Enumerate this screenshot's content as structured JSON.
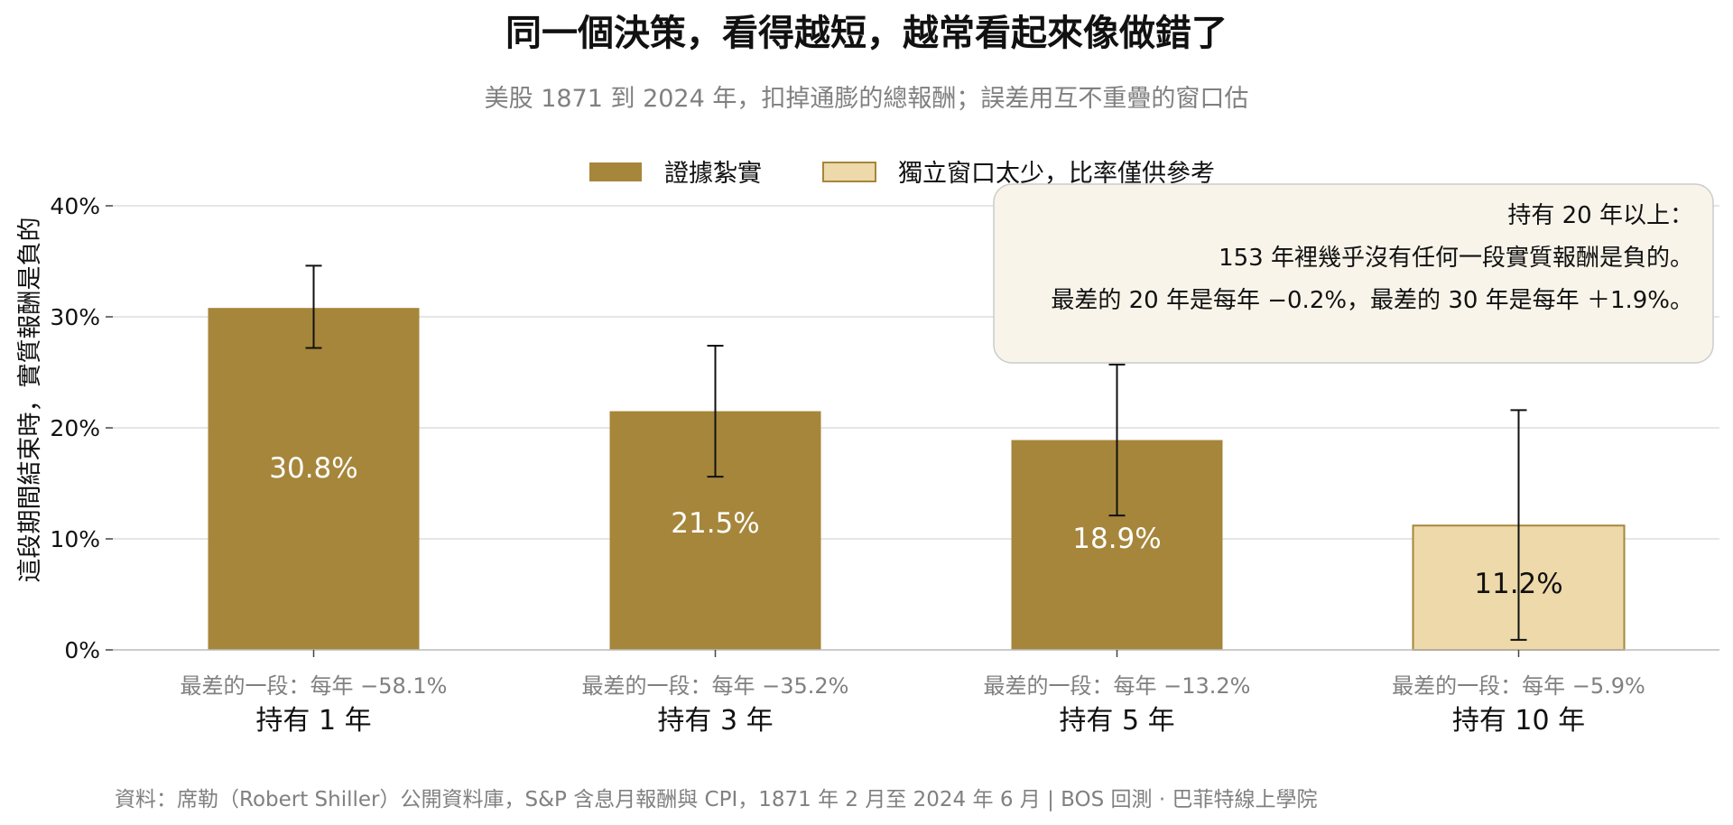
{
  "chart_data": {
    "type": "bar",
    "title": "同一個決策，看得越短，越常看起來像做錯了",
    "subtitle": "美股 1871 到 2024 年，扣掉通膨的總報酬；誤差用互不重疊的窗口估",
    "ylabel": "這段期間結束時，實質報酬是負的",
    "xlabel": "",
    "ylim": [
      0,
      40
    ],
    "yticks": [
      0,
      10,
      20,
      30,
      40
    ],
    "ytick_labels": [
      "0%",
      "10%",
      "20%",
      "30%",
      "40%"
    ],
    "grid": true,
    "legend_position": "top-center",
    "categories": [
      "持有 1 年",
      "持有 3 年",
      "持有 5 年",
      "持有 10 年"
    ],
    "values": [
      30.8,
      21.5,
      18.9,
      11.2
    ],
    "value_labels": [
      "30.8%",
      "21.5%",
      "18.9%",
      "11.2%"
    ],
    "error_low": [
      27.2,
      15.6,
      12.1,
      0.9
    ],
    "error_high": [
      34.6,
      27.4,
      25.7,
      21.6
    ],
    "worst_labels": [
      "最差的一段：每年 −58.1%",
      "最差的一段：每年 −35.2%",
      "最差的一段：每年 −13.2%",
      "最差的一段：每年 −5.9%"
    ],
    "bar_style": [
      "solid",
      "solid",
      "solid",
      "light"
    ],
    "legend": [
      {
        "label": "證據紮實",
        "style": "solid"
      },
      {
        "label": "獨立窗口太少，比率僅供參考",
        "style": "light"
      }
    ],
    "annotation": {
      "lines": [
        "持有 20 年以上：",
        "153 年裡幾乎沒有任何一段實質報酬是負的。",
        "最差的 20 年是每年 −0.2%，最差的 30 年是每年 ＋1.9%。"
      ]
    },
    "source": "資料：席勒（Robert Shiller）公開資料庫，S&P 含息月報酬與 CPI，1871 年 2 月至 2024 年 6 月 | BOS 回測 ·  巴菲特線上學院"
  },
  "colors": {
    "bar_solid": "#A6863B",
    "bar_light_fill": "#EDD9A9",
    "bar_light_edge": "#A6863B",
    "grid": "#DDDDDD",
    "muted_text": "#808080",
    "annotation_bg": "#F8F4EA",
    "annotation_border": "#CCCCCC"
  }
}
